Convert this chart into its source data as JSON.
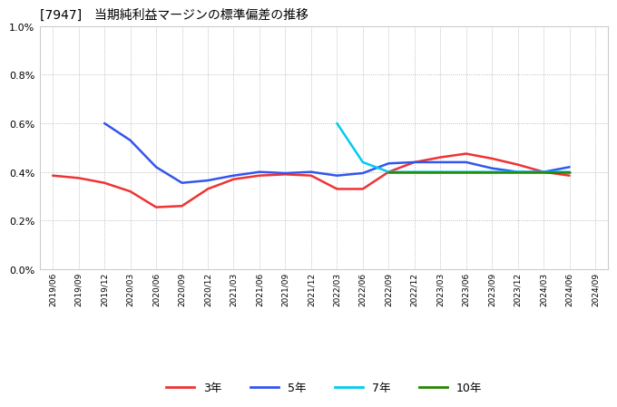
{
  "title": "[7947]　当期純利益マージンの標準偏差の推移",
  "background_color": "#ffffff",
  "plot_bg_color": "#ffffff",
  "grid_color": "#aaaaaa",
  "ylim": [
    0.0,
    0.01
  ],
  "yticks": [
    0.0,
    0.002,
    0.004,
    0.006,
    0.008,
    0.01
  ],
  "ytick_labels": [
    "0.0%",
    "0.2%",
    "0.4%",
    "0.6%",
    "0.8%",
    "1.0%"
  ],
  "series": {
    "3year": {
      "color": "#ee3333",
      "label": "3年",
      "x": [
        "2019/06",
        "2019/09",
        "2019/12",
        "2020/03",
        "2020/06",
        "2020/09",
        "2020/12",
        "2021/03",
        "2021/06",
        "2021/09",
        "2021/12",
        "2022/03",
        "2022/06",
        "2022/09",
        "2022/12",
        "2023/03",
        "2023/06",
        "2023/09",
        "2023/12",
        "2024/03",
        "2024/06"
      ],
      "y": [
        0.00385,
        0.00375,
        0.00355,
        0.0032,
        0.00255,
        0.0026,
        0.0033,
        0.0037,
        0.00385,
        0.0039,
        0.00385,
        0.0033,
        0.0033,
        0.004,
        0.0044,
        0.0046,
        0.00475,
        0.00455,
        0.0043,
        0.004,
        0.00385
      ]
    },
    "5year": {
      "color": "#3355ee",
      "label": "5年",
      "x": [
        "2019/12",
        "2020/03",
        "2020/06",
        "2020/09",
        "2020/12",
        "2021/03",
        "2021/06",
        "2021/09",
        "2021/12",
        "2022/03",
        "2022/06",
        "2022/09",
        "2022/12",
        "2023/03",
        "2023/06",
        "2023/09",
        "2023/12",
        "2024/03",
        "2024/06"
      ],
      "y": [
        0.006,
        0.0053,
        0.0042,
        0.00355,
        0.00365,
        0.00385,
        0.004,
        0.00395,
        0.004,
        0.00385,
        0.00395,
        0.00435,
        0.0044,
        0.0044,
        0.0044,
        0.00415,
        0.004,
        0.004,
        0.0042
      ]
    },
    "7year": {
      "color": "#00ccee",
      "label": "7年",
      "x": [
        "2022/03",
        "2022/06",
        "2022/09",
        "2022/12",
        "2023/03",
        "2023/06",
        "2023/09",
        "2023/12",
        "2024/03",
        "2024/06"
      ],
      "y": [
        0.006,
        0.0044,
        0.004,
        0.004,
        0.004,
        0.004,
        0.004,
        0.004,
        0.004,
        0.004
      ]
    },
    "10year": {
      "color": "#228800",
      "label": "10年",
      "x": [
        "2022/09",
        "2022/12",
        "2023/03",
        "2023/06",
        "2023/09",
        "2023/12",
        "2024/03",
        "2024/06"
      ],
      "y": [
        0.004,
        0.004,
        0.004,
        0.004,
        0.004,
        0.004,
        0.004,
        0.004
      ]
    }
  },
  "xtick_labels": [
    "2019/06",
    "2019/09",
    "2019/12",
    "2020/03",
    "2020/06",
    "2020/09",
    "2020/12",
    "2021/03",
    "2021/06",
    "2021/09",
    "2021/12",
    "2022/03",
    "2022/06",
    "2022/09",
    "2022/12",
    "2023/03",
    "2023/06",
    "2023/09",
    "2023/12",
    "2024/03",
    "2024/06",
    "2024/09"
  ],
  "legend_labels": [
    "3年",
    "5年",
    "7年",
    "10年"
  ],
  "legend_colors": [
    "#ee3333",
    "#3355ee",
    "#00ccee",
    "#228800"
  ]
}
